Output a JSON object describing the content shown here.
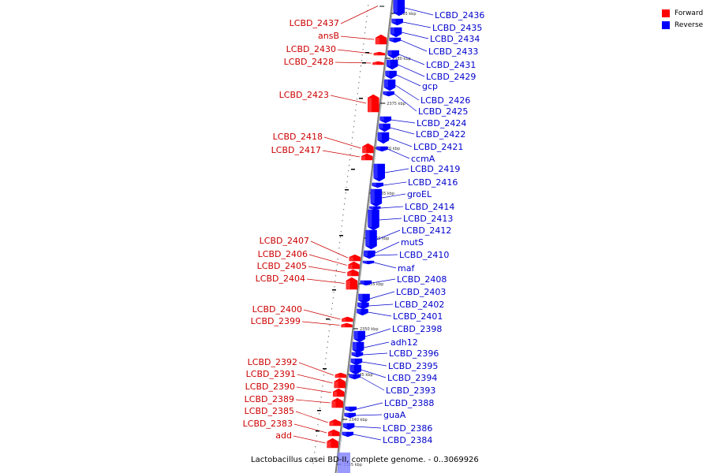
{
  "caption": "Lactobacillus casei BD-II, complete genome. - 0..3069926",
  "legend": [
    {
      "label": "Forward",
      "color": "#ff0000"
    },
    {
      "label": "Reverse",
      "color": "#0000ff"
    }
  ],
  "colors": {
    "forward": "#ff0000",
    "reverse": "#0000ff",
    "forward_label": "#cc0000",
    "reverse_label": "#0000cc",
    "axis": "#888888"
  },
  "ticks": [
    "2385 kbp",
    "2380 kbp",
    "2375 kbp",
    "2370 kbp",
    "2365 kbp",
    "2360 kbp",
    "2355 kbp",
    "2350 kbp",
    "2345 kbp",
    "2340 kbp",
    "2335 kbp"
  ],
  "forward_genes": [
    "LCBD_2437",
    "ansB",
    "LCBD_2430",
    "LCBD_2428",
    "LCBD_2423",
    "LCBD_2418",
    "LCBD_2417",
    "LCBD_2407",
    "LCBD_2406",
    "LCBD_2405",
    "LCBD_2404",
    "LCBD_2400",
    "LCBD_2399",
    "LCBD_2392",
    "LCBD_2391",
    "LCBD_2390",
    "LCBD_2389",
    "LCBD_2385",
    "LCBD_2383",
    "add"
  ],
  "reverse_genes": [
    "LCBD_2436",
    "LCBD_2435",
    "LCBD_2434",
    "LCBD_2433",
    "LCBD_2431",
    "LCBD_2429",
    "gcp",
    "LCBD_2426",
    "LCBD_2425",
    "LCBD_2424",
    "LCBD_2422",
    "LCBD_2421",
    "ccmA",
    "LCBD_2419",
    "LCBD_2416",
    "groEL",
    "LCBD_2414",
    "LCBD_2413",
    "LCBD_2412",
    "mutS",
    "LCBD_2410",
    "maf",
    "LCBD_2408",
    "LCBD_2403",
    "LCBD_2402",
    "LCBD_2401",
    "LCBD_2398",
    "adh12",
    "LCBD_2396",
    "LCBD_2395",
    "LCBD_2394",
    "LCBD_2393",
    "LCBD_2388",
    "guaA",
    "LCBD_2386",
    "LCBD_2384"
  ]
}
